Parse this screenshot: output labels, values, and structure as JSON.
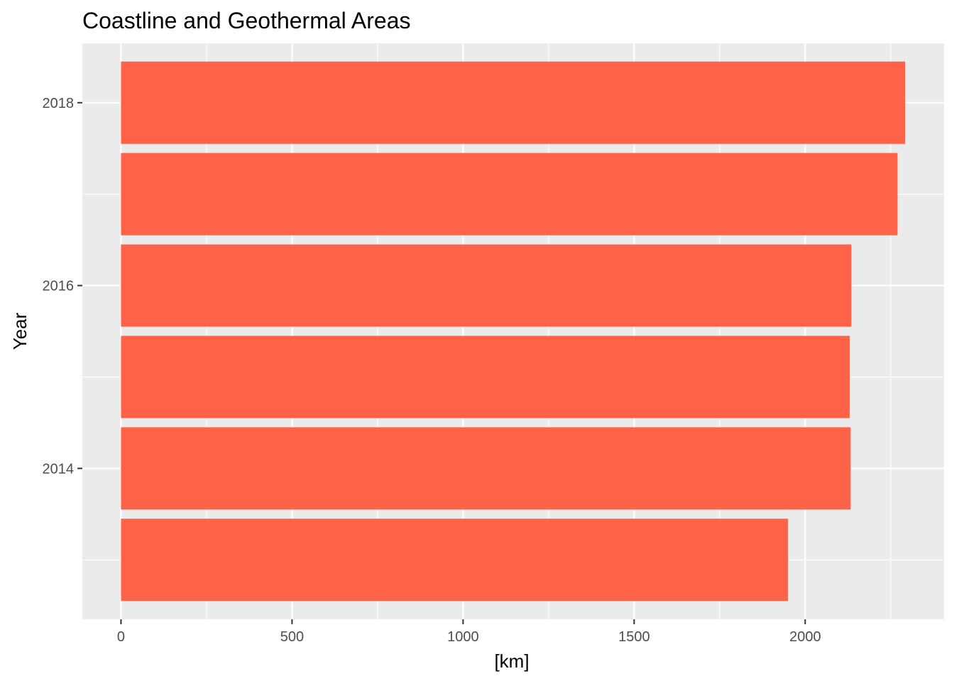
{
  "chart_data": {
    "type": "bar",
    "orientation": "horizontal",
    "title": "Coastline and Geothermal Areas",
    "xlabel": "[km]",
    "ylabel": "Year",
    "categories": [
      2013,
      2014,
      2015,
      2016,
      2017,
      2018
    ],
    "values": [
      1950,
      2133,
      2130,
      2135,
      2270,
      2292
    ],
    "xlim": [
      -113,
      2406
    ],
    "ylim": [
      2012.35,
      2018.65
    ],
    "xticks": [
      0,
      500,
      1000,
      1500,
      2000
    ],
    "yticks": [
      2014,
      2016,
      2018
    ],
    "xtick_labels": [
      "0",
      "500",
      "1000",
      "1500",
      "2000"
    ],
    "ytick_labels": [
      "2014",
      "2016",
      "2018"
    ],
    "grid": true,
    "legend": "none",
    "colors": {
      "bar": "#FF6347",
      "panel": "#EBEBEB",
      "grid_major": "#FFFFFF",
      "tick": "#333333"
    }
  }
}
